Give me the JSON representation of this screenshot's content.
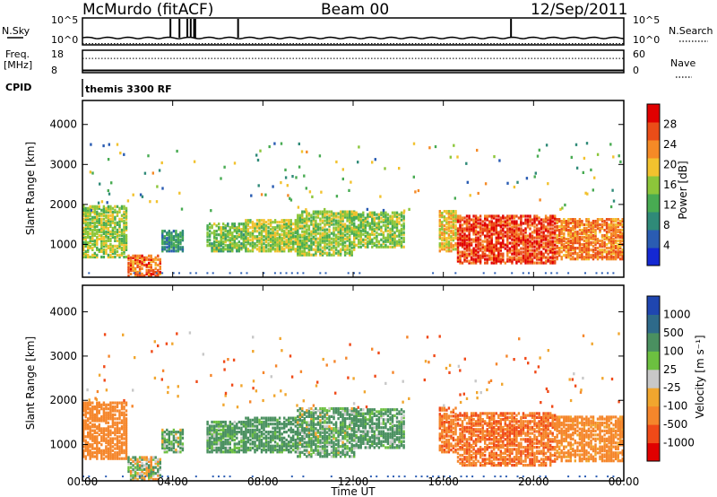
{
  "header": {
    "station": "McMurdo (fitACF)",
    "beam": "Beam 00",
    "date": "12/Sep/2011",
    "cpid_program": "themis 3300 RF"
  },
  "labels": {
    "nsky": "N.Sky",
    "nsearch": "N.Search",
    "freq": "Freq.",
    "freq_unit": "[MHz]",
    "nave": "Nave",
    "cpid": "CPID",
    "slant_range": "Slant Range [km]",
    "time_ut": "Time UT",
    "power_label": "Power [dB]",
    "velocity_label": "Velocity [m s⁻¹]"
  },
  "colors": {
    "power_scale": [
      "#1428d2",
      "#2a5cb2",
      "#2f8a78",
      "#48ab52",
      "#8cc63a",
      "#f2c22e",
      "#f58a26",
      "#ea4d18",
      "#e00000"
    ],
    "velocity_scale": [
      "#e00000",
      "#f04a18",
      "#f5862b",
      "#f1a62e",
      "#c8c8c8",
      "#6cc040",
      "#4a9060",
      "#2e6a8a",
      "#1f46b0"
    ],
    "trace": "#000000"
  },
  "chart_data": [
    {
      "type": "line",
      "panel": "noise",
      "left_axis": {
        "label": "N.Sky",
        "tick_labels": [
          "10^5",
          "10^0"
        ]
      },
      "right_axis": {
        "label": "N.Search",
        "tick_labels": [
          "10^5",
          "10^0"
        ]
      },
      "series": [
        {
          "name": "N.Sky",
          "style": "solid",
          "approx_level": 2,
          "spikes_x_hours": [
            3.9,
            4.3,
            4.65,
            4.8,
            4.95,
            5.0,
            6.9,
            19.0
          ]
        },
        {
          "name": "N.Search",
          "style": "dotted",
          "approx_level": 0.8
        }
      ],
      "xlim_hours": [
        0,
        24
      ]
    },
    {
      "type": "line",
      "panel": "frequency_nave",
      "left_axis": {
        "label": "Freq. [MHz]",
        "tick_labels": [
          "18",
          "8"
        ],
        "ylim": [
          8,
          18
        ]
      },
      "right_axis": {
        "label": "Nave",
        "tick_labels": [
          "60",
          "0"
        ],
        "ylim": [
          0,
          60
        ]
      },
      "series": [
        {
          "name": "Freq.",
          "style": "solid",
          "approx_value": 9
        },
        {
          "name": "Nave",
          "style": "dotted",
          "approx_value": 38
        }
      ],
      "xlim_hours": [
        0,
        24
      ]
    },
    {
      "type": "heatmap",
      "panel": "power",
      "ylabel": "Slant Range [km]",
      "ylim": [
        180,
        4600
      ],
      "yticks": [
        1000,
        2000,
        3000,
        4000
      ],
      "xlim_hours": [
        0,
        24
      ],
      "colorbar": {
        "label": "Power [dB]",
        "range": [
          0,
          32
        ],
        "tick_labels": [
          "4",
          "8",
          "12",
          "16",
          "20",
          "24",
          "28"
        ]
      },
      "echo_regions": [
        {
          "t0": 0.0,
          "t1": 2.0,
          "r0": 650,
          "r1": 1950,
          "power_db": 16
        },
        {
          "t0": 2.0,
          "t1": 3.5,
          "r0": 180,
          "r1": 700,
          "power_db": 26
        },
        {
          "t0": 3.5,
          "t1": 4.4,
          "r0": 800,
          "r1": 1300,
          "power_db": 9
        },
        {
          "t0": 5.5,
          "t1": 7.2,
          "r0": 800,
          "r1": 1500,
          "power_db": 14
        },
        {
          "t0": 7.2,
          "t1": 9.5,
          "r0": 800,
          "r1": 1600,
          "power_db": 17
        },
        {
          "t0": 9.5,
          "t1": 12.0,
          "r0": 700,
          "r1": 1800,
          "power_db": 16
        },
        {
          "t0": 12.0,
          "t1": 14.2,
          "r0": 900,
          "r1": 1800,
          "power_db": 15
        },
        {
          "t0": 15.8,
          "t1": 16.6,
          "r0": 800,
          "r1": 1800,
          "power_db": 20
        },
        {
          "t0": 16.6,
          "t1": 21.0,
          "r0": 500,
          "r1": 1700,
          "power_db": 29
        },
        {
          "t0": 21.0,
          "t1": 24.0,
          "r0": 600,
          "r1": 1600,
          "power_db": 25
        }
      ]
    },
    {
      "type": "heatmap",
      "panel": "velocity",
      "ylabel": "Slant Range [km]",
      "xlabel": "Time UT",
      "ylim": [
        180,
        4600
      ],
      "yticks": [
        1000,
        2000,
        3000,
        4000
      ],
      "xlim_hours": [
        0,
        24
      ],
      "xtick_labels": [
        "00:00",
        "04:00",
        "08:00",
        "12:00",
        "16:00",
        "20:00",
        "00:00"
      ],
      "colorbar": {
        "label": "Velocity [m s^-1]",
        "tick_labels": [
          "1000",
          "500",
          "100",
          "25",
          "-25",
          "-100",
          "-500",
          "-1000"
        ]
      },
      "echo_regions": [
        {
          "t0": 0.0,
          "t1": 2.0,
          "r0": 650,
          "r1": 1950,
          "velocity": -300
        },
        {
          "t0": 2.0,
          "t1": 3.5,
          "r0": 180,
          "r1": 700,
          "velocity": 20
        },
        {
          "t0": 3.5,
          "t1": 4.4,
          "r0": 800,
          "r1": 1300,
          "velocity": 150
        },
        {
          "t0": 5.5,
          "t1": 7.2,
          "r0": 800,
          "r1": 1500,
          "velocity": 200
        },
        {
          "t0": 7.2,
          "t1": 9.5,
          "r0": 800,
          "r1": 1600,
          "velocity": 250
        },
        {
          "t0": 9.5,
          "t1": 12.0,
          "r0": 700,
          "r1": 1800,
          "velocity": 150
        },
        {
          "t0": 12.0,
          "t1": 14.2,
          "r0": 900,
          "r1": 1800,
          "velocity": 200
        },
        {
          "t0": 15.8,
          "t1": 16.6,
          "r0": 800,
          "r1": 1800,
          "velocity": -400
        },
        {
          "t0": 16.6,
          "t1": 21.0,
          "r0": 500,
          "r1": 1700,
          "velocity": -450
        },
        {
          "t0": 21.0,
          "t1": 24.0,
          "r0": 600,
          "r1": 1600,
          "velocity": -250
        }
      ]
    }
  ]
}
